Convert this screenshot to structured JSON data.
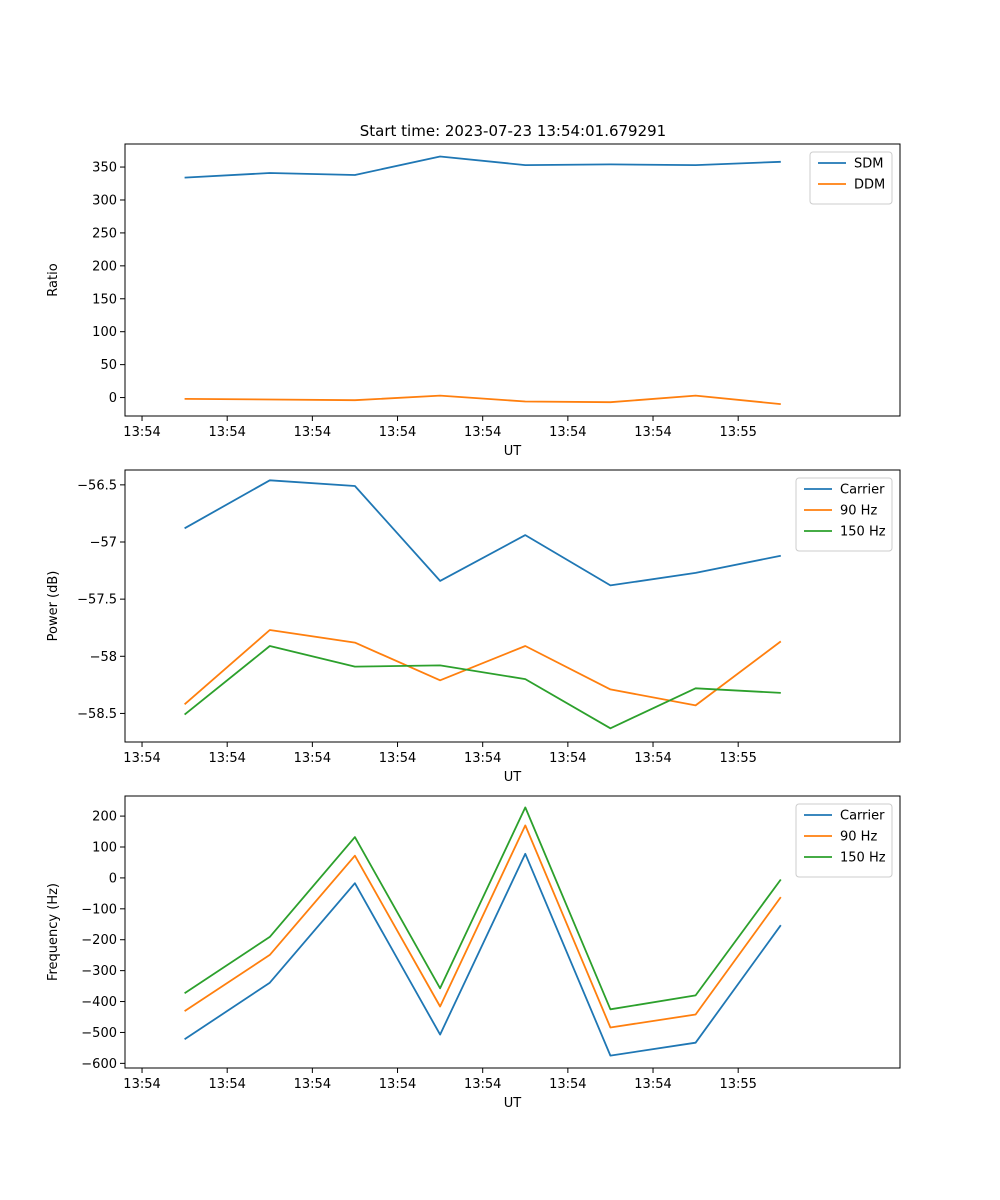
{
  "title": "Start time: 2023-07-23 13:54:01.679291",
  "colors": {
    "blue": "#1f77b4",
    "orange": "#ff7f0e",
    "green": "#2ca02c"
  },
  "chart_data": [
    {
      "type": "line",
      "ylabel": "Ratio",
      "xlabel": "UT",
      "xticks": [
        "13:54",
        "13:54",
        "13:54",
        "13:54",
        "13:54",
        "13:54",
        "13:54",
        "13:55"
      ],
      "xlim": [
        -0.2,
        8.9
      ],
      "x": [
        0.5,
        1.5,
        2.5,
        3.5,
        4.5,
        5.5,
        6.5,
        7.5
      ],
      "ylim": [
        -28,
        385
      ],
      "yticks": [
        0,
        50,
        100,
        150,
        200,
        250,
        300,
        350
      ],
      "legend_position": "upper right",
      "series": [
        {
          "name": "SDM",
          "color": "#1f77b4",
          "values": [
            334,
            341,
            338,
            366,
            353,
            354,
            353,
            358
          ]
        },
        {
          "name": "DDM",
          "color": "#ff7f0e",
          "values": [
            -2,
            -3,
            -4,
            3,
            -6,
            -7,
            3,
            -10
          ]
        }
      ]
    },
    {
      "type": "line",
      "ylabel": "Power (dB)",
      "xlabel": "UT",
      "xticks": [
        "13:54",
        "13:54",
        "13:54",
        "13:54",
        "13:54",
        "13:54",
        "13:54",
        "13:55"
      ],
      "xlim": [
        -0.2,
        8.9
      ],
      "x": [
        0.5,
        1.5,
        2.5,
        3.5,
        4.5,
        5.5,
        6.5,
        7.5
      ],
      "ylim": [
        -58.75,
        -56.37
      ],
      "yticks": [
        -58.5,
        -58.0,
        -57.5,
        -57.0,
        -56.5
      ],
      "legend_position": "upper right",
      "series": [
        {
          "name": "Carrier",
          "color": "#1f77b4",
          "values": [
            -56.88,
            -56.46,
            -56.51,
            -57.34,
            -56.94,
            -57.38,
            -57.27,
            -57.12
          ]
        },
        {
          "name": "90 Hz",
          "color": "#ff7f0e",
          "values": [
            -58.42,
            -57.77,
            -57.88,
            -58.21,
            -57.91,
            -58.29,
            -58.43,
            -57.87
          ]
        },
        {
          "name": "150 Hz",
          "color": "#2ca02c",
          "values": [
            -58.51,
            -57.91,
            -58.09,
            -58.08,
            -58.2,
            -58.63,
            -58.28,
            -58.32
          ]
        }
      ]
    },
    {
      "type": "line",
      "ylabel": "Frequency (Hz)",
      "xlabel": "UT",
      "xticks": [
        "13:54",
        "13:54",
        "13:54",
        "13:54",
        "13:54",
        "13:54",
        "13:54",
        "13:55"
      ],
      "xlim": [
        -0.2,
        8.9
      ],
      "x": [
        0.5,
        1.5,
        2.5,
        3.5,
        4.5,
        5.5,
        6.5,
        7.5
      ],
      "ylim": [
        -615,
        265
      ],
      "yticks": [
        -600,
        -500,
        -400,
        -300,
        -200,
        -100,
        0,
        100,
        200
      ],
      "legend_position": "upper right",
      "series": [
        {
          "name": "Carrier",
          "color": "#1f77b4",
          "values": [
            -522,
            -339,
            -17,
            -507,
            78,
            -575,
            -533,
            -153
          ]
        },
        {
          "name": "90 Hz",
          "color": "#ff7f0e",
          "values": [
            -431,
            -249,
            72,
            -416,
            170,
            -484,
            -442,
            -62
          ]
        },
        {
          "name": "150 Hz",
          "color": "#2ca02c",
          "values": [
            -373,
            -191,
            132,
            -357,
            228,
            -425,
            -380,
            -5
          ]
        }
      ]
    }
  ]
}
